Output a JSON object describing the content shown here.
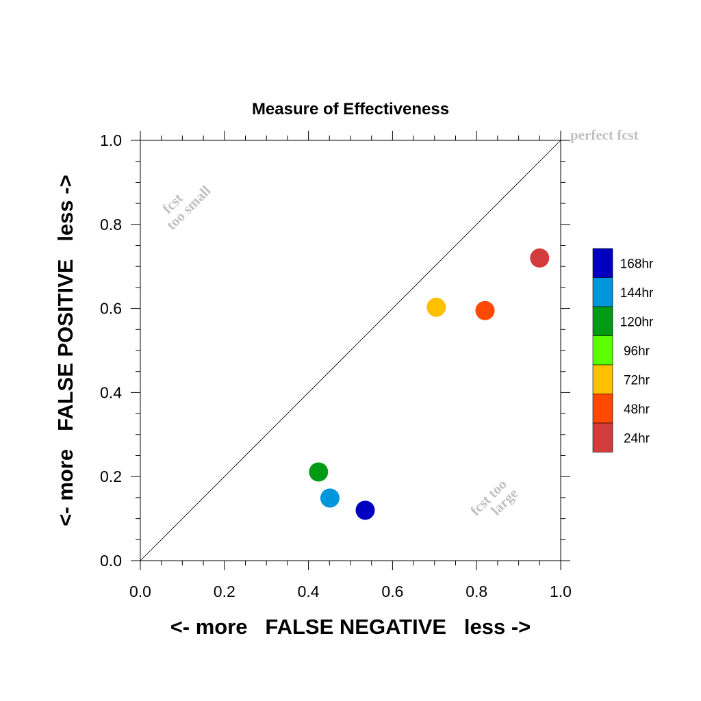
{
  "chart_data": {
    "type": "scatter",
    "title": "Measure of Effectiveness",
    "xlabel": "<- more   FALSE NEGATIVE   less ->",
    "ylabel": "<- more   FALSE POSITIVE   less ->",
    "xlim": [
      0.0,
      1.0
    ],
    "ylim": [
      0.0,
      1.0
    ],
    "x_ticks": [
      "0.0",
      "0.2",
      "0.4",
      "0.6",
      "0.8",
      "1.0"
    ],
    "y_ticks": [
      "0.0",
      "0.2",
      "0.4",
      "0.6",
      "0.8",
      "1.0"
    ],
    "grid": false,
    "diagonal_line": true,
    "annotations": {
      "perfect": "perfect fcst",
      "small_line1": "fcst",
      "small_line2": "too small",
      "large_line1": "fcst too",
      "large_line2": "large"
    },
    "series": [
      {
        "name": "168hr",
        "color": "#0000c0",
        "x": 0.535,
        "y": 0.12
      },
      {
        "name": "144hr",
        "color": "#0096dc",
        "x": 0.451,
        "y": 0.149
      },
      {
        "name": "120hr",
        "color": "#009a14",
        "x": 0.424,
        "y": 0.211
      },
      {
        "name": "96hr",
        "color": "#5aff00",
        "x": null,
        "y": null
      },
      {
        "name": "72hr",
        "color": "#ffc000",
        "x": 0.704,
        "y": 0.603
      },
      {
        "name": "48hr",
        "color": "#ff4800",
        "x": 0.82,
        "y": 0.595
      },
      {
        "name": "24hr",
        "color": "#d23c3c",
        "x": 0.95,
        "y": 0.72
      }
    ],
    "legend_position": "right"
  }
}
